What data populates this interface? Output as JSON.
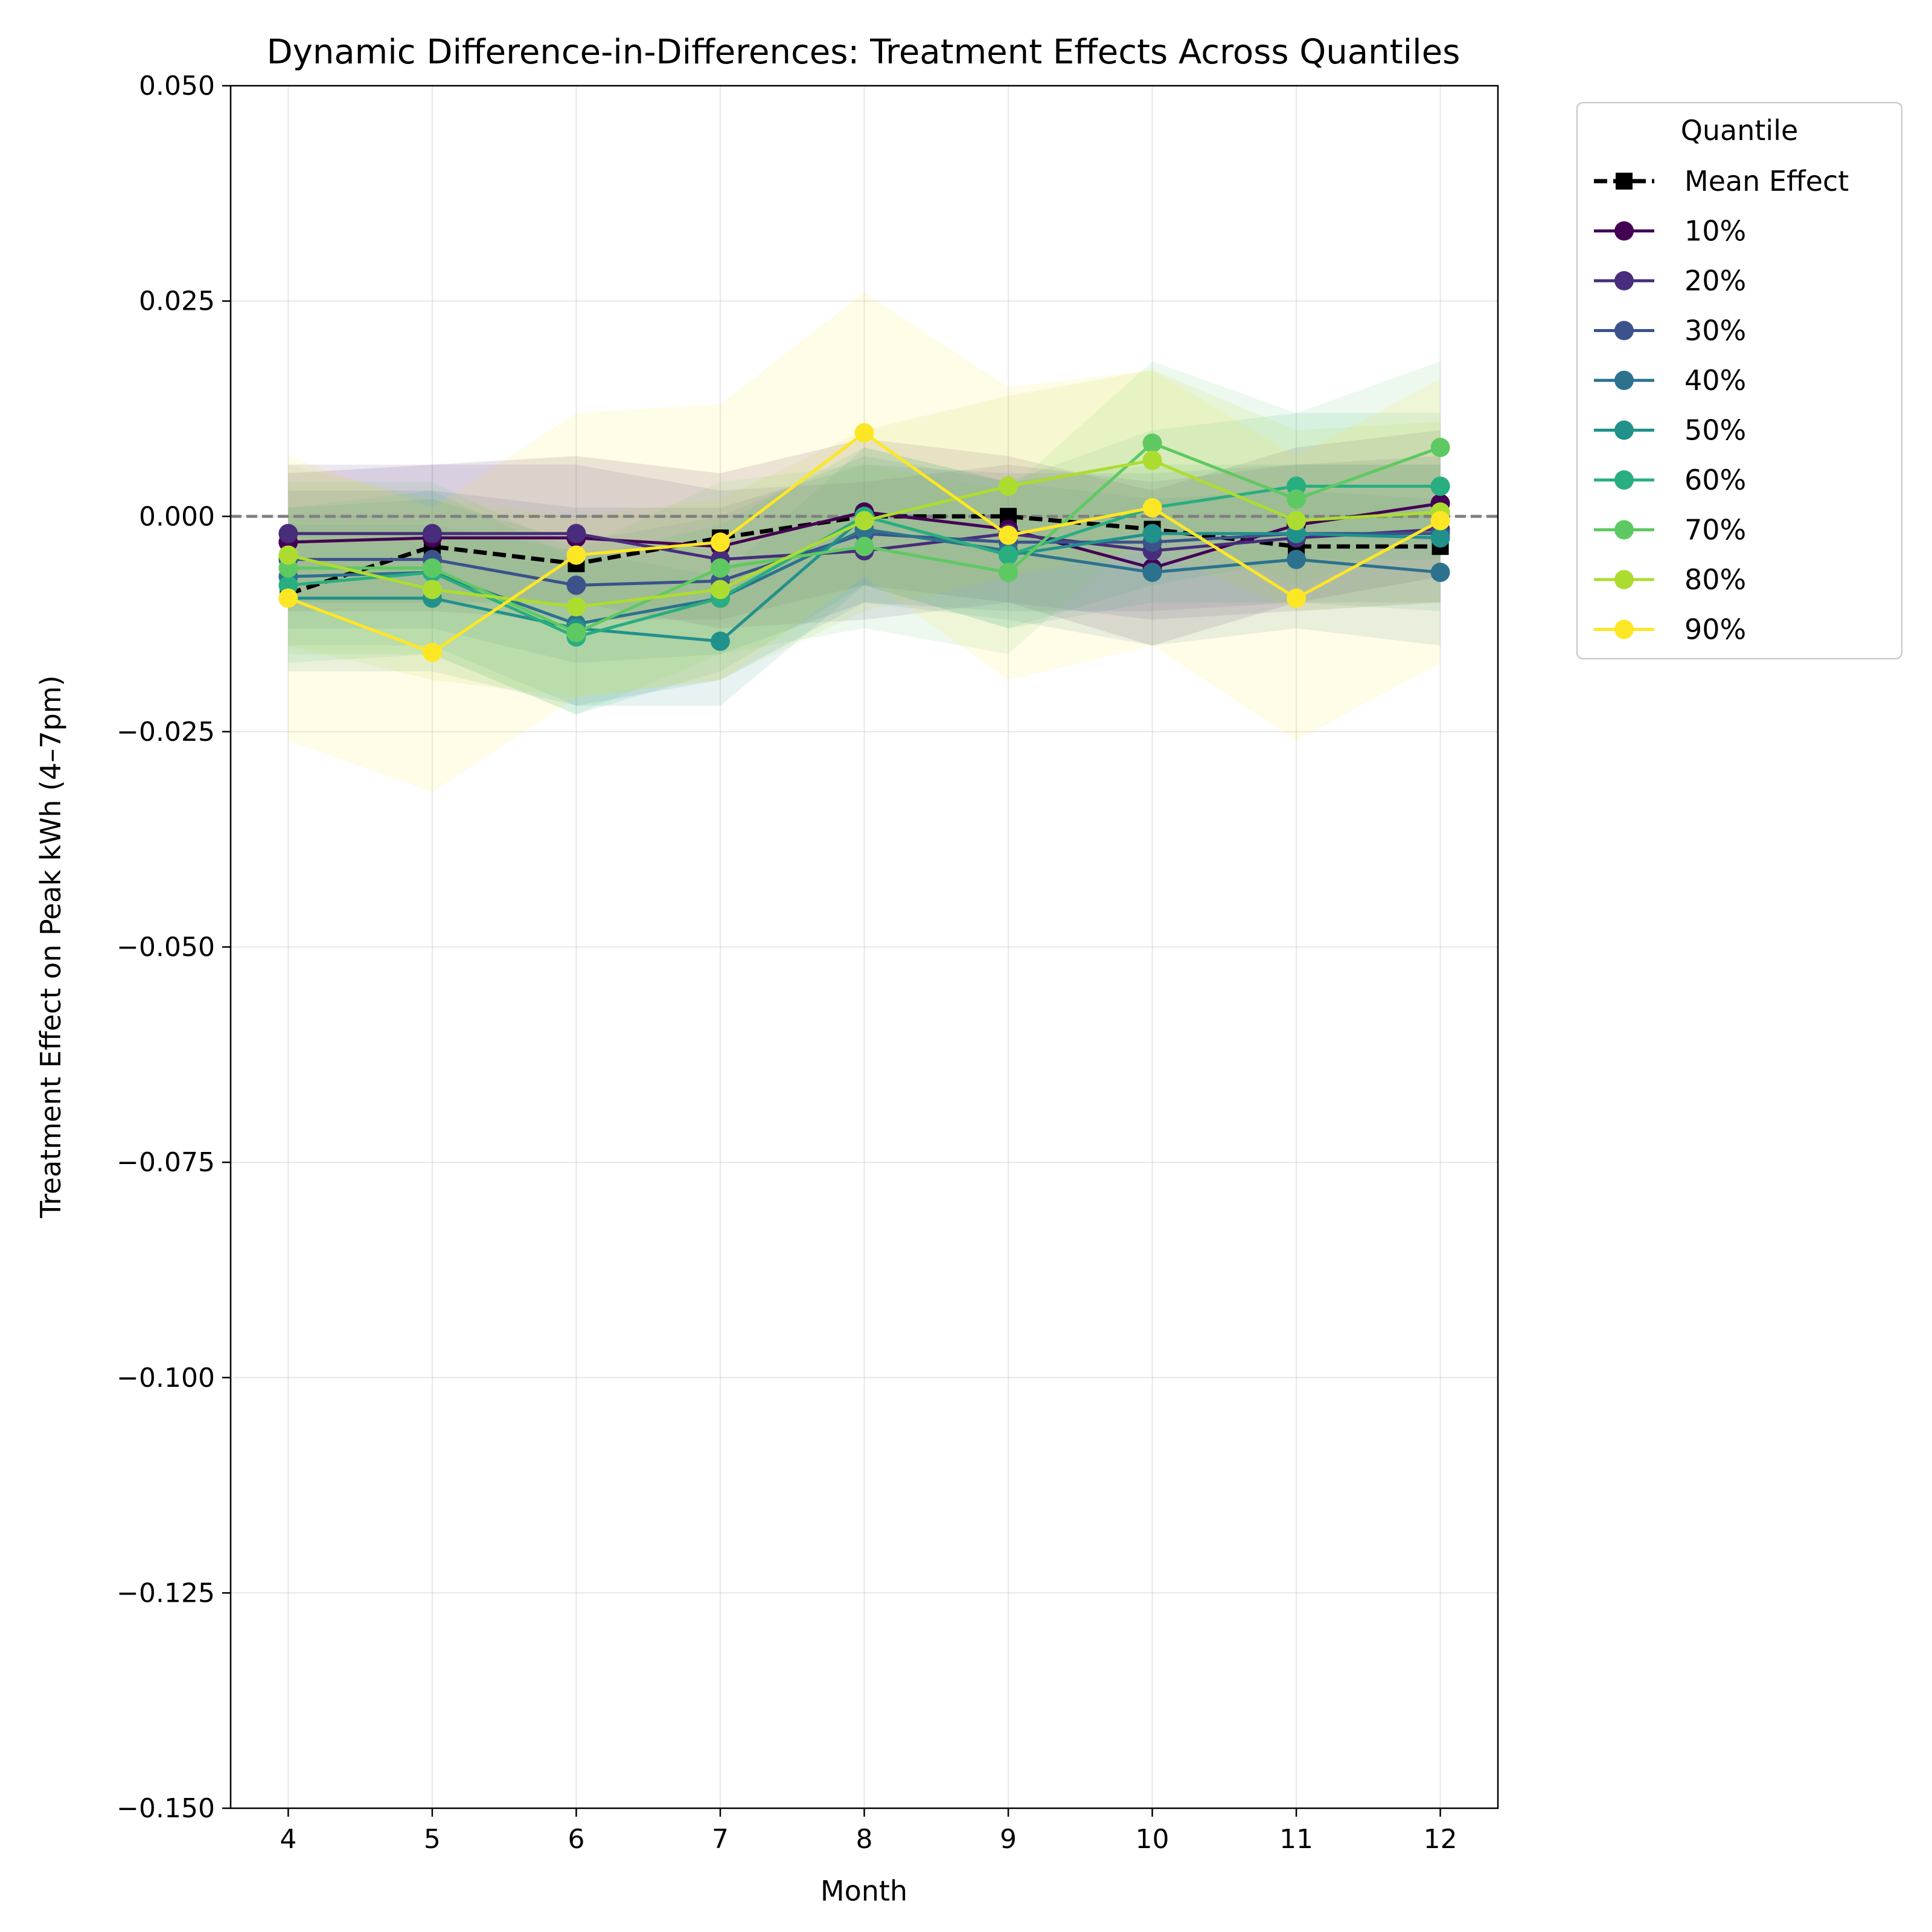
{
  "chart_data": {
    "type": "line",
    "title": "Dynamic Difference-in-Differences: Treatment Effects Across Quantiles",
    "xlabel": "Month",
    "ylabel": "Treatment Effect on Peak kWh (4–7pm)",
    "x": [
      4,
      5,
      6,
      7,
      8,
      9,
      10,
      11,
      12
    ],
    "xticks": [
      "4",
      "5",
      "6",
      "7",
      "8",
      "9",
      "10",
      "11",
      "12"
    ],
    "xlim": [
      3.6,
      12.4
    ],
    "ylim": [
      -0.15,
      0.05
    ],
    "yticks": [
      -0.15,
      -0.125,
      -0.1,
      -0.075,
      -0.05,
      -0.025,
      0.0,
      0.025,
      0.05
    ],
    "ytick_labels": [
      "−0.150",
      "−0.125",
      "−0.100",
      "−0.075",
      "−0.050",
      "−0.025",
      "0.000",
      "0.025",
      "0.050"
    ],
    "grid": true,
    "reference_line": 0.0,
    "legend": {
      "title": "Quantile",
      "position": "outside-right-top"
    },
    "series": [
      {
        "name": "Mean Effect",
        "color": "#000000",
        "dashed": true,
        "marker": "square",
        "values": [
          -0.009,
          -0.0035,
          -0.0055,
          -0.0025,
          0.0,
          0.0,
          -0.0015,
          -0.0035,
          -0.0035
        ]
      },
      {
        "name": "10%",
        "color": "#440154",
        "marker": "circle",
        "values": [
          -0.003,
          -0.0025,
          -0.0025,
          -0.0035,
          0.0005,
          -0.0015,
          -0.006,
          -0.001,
          0.0015
        ],
        "band": [
          [
            -0.011,
            0.005
          ],
          [
            -0.011,
            0.006
          ],
          [
            -0.012,
            0.007
          ],
          [
            -0.012,
            0.005
          ],
          [
            -0.008,
            0.009
          ],
          [
            -0.01,
            0.007
          ],
          [
            -0.015,
            0.003
          ],
          [
            -0.01,
            0.008
          ],
          [
            -0.007,
            0.01
          ]
        ]
      },
      {
        "name": "20%",
        "color": "#472d7b",
        "marker": "circle",
        "values": [
          -0.002,
          -0.002,
          -0.002,
          -0.005,
          -0.004,
          -0.002,
          -0.004,
          -0.0025,
          -0.0015
        ],
        "band": [
          [
            -0.01,
            0.006
          ],
          [
            -0.01,
            0.006
          ],
          [
            -0.01,
            0.006
          ],
          [
            -0.013,
            0.003
          ],
          [
            -0.012,
            0.004
          ],
          [
            -0.01,
            0.006
          ],
          [
            -0.012,
            0.004
          ],
          [
            -0.011,
            0.006
          ],
          [
            -0.01,
            0.007
          ]
        ]
      },
      {
        "name": "30%",
        "color": "#3b528b",
        "marker": "circle",
        "values": [
          -0.005,
          -0.005,
          -0.008,
          -0.0075,
          -0.002,
          -0.003,
          -0.003,
          -0.002,
          -0.002
        ],
        "band": [
          [
            -0.013,
            0.003
          ],
          [
            -0.013,
            0.003
          ],
          [
            -0.017,
            0.001
          ],
          [
            -0.016,
            0.001
          ],
          [
            -0.01,
            0.006
          ],
          [
            -0.011,
            0.005
          ],
          [
            -0.011,
            0.005
          ],
          [
            -0.01,
            0.006
          ],
          [
            -0.01,
            0.006
          ]
        ]
      },
      {
        "name": "40%",
        "color": "#2c728e",
        "marker": "circle",
        "values": [
          -0.007,
          -0.0065,
          -0.0125,
          -0.0095,
          -0.0015,
          -0.004,
          -0.0065,
          -0.005,
          -0.0065
        ],
        "band": [
          [
            -0.015,
            0.001
          ],
          [
            -0.015,
            0.002
          ],
          [
            -0.022,
            -0.003
          ],
          [
            -0.019,
            0.0
          ],
          [
            -0.01,
            0.007
          ],
          [
            -0.012,
            0.004
          ],
          [
            -0.015,
            0.002
          ],
          [
            -0.013,
            0.003
          ],
          [
            -0.015,
            0.002
          ]
        ]
      },
      {
        "name": "50%",
        "color": "#21918c",
        "marker": "circle",
        "values": [
          -0.0095,
          -0.0095,
          -0.013,
          -0.0145,
          0.0,
          -0.0045,
          -0.002,
          -0.002,
          -0.0025
        ],
        "band": [
          [
            -0.018,
            -0.001
          ],
          [
            -0.018,
            -0.001
          ],
          [
            -0.022,
            -0.004
          ],
          [
            -0.022,
            -0.007
          ],
          [
            -0.008,
            0.008
          ],
          [
            -0.013,
            0.004
          ],
          [
            -0.01,
            0.006
          ],
          [
            -0.01,
            0.006
          ],
          [
            -0.011,
            0.006
          ]
        ]
      },
      {
        "name": "60%",
        "color": "#28ae80",
        "marker": "circle",
        "values": [
          -0.008,
          -0.0065,
          -0.014,
          -0.0095,
          0.0,
          -0.0045,
          0.001,
          0.0035,
          0.0035
        ],
        "band": [
          [
            -0.017,
            0.001
          ],
          [
            -0.016,
            0.003
          ],
          [
            -0.023,
            -0.005
          ],
          [
            -0.018,
            -0.001
          ],
          [
            -0.008,
            0.008
          ],
          [
            -0.013,
            0.004
          ],
          [
            -0.008,
            0.01
          ],
          [
            -0.005,
            0.012
          ],
          [
            -0.005,
            0.012
          ]
        ]
      },
      {
        "name": "70%",
        "color": "#5ec962",
        "marker": "circle",
        "values": [
          -0.006,
          -0.006,
          -0.0135,
          -0.006,
          -0.0035,
          -0.0065,
          0.0085,
          0.002,
          0.008
        ],
        "band": [
          [
            -0.016,
            0.004
          ],
          [
            -0.016,
            0.004
          ],
          [
            -0.023,
            -0.004
          ],
          [
            -0.016,
            0.004
          ],
          [
            -0.013,
            0.006
          ],
          [
            -0.016,
            0.003
          ],
          [
            -0.001,
            0.018
          ],
          [
            -0.008,
            0.012
          ],
          [
            -0.002,
            0.018
          ]
        ]
      },
      {
        "name": "80%",
        "color": "#addc30",
        "marker": "circle",
        "values": [
          -0.0045,
          -0.0085,
          -0.0105,
          -0.0085,
          -0.0005,
          0.0035,
          0.0065,
          -0.0005,
          0.0005
        ],
        "band": [
          [
            -0.015,
            0.006
          ],
          [
            -0.019,
            0.002
          ],
          [
            -0.021,
            0.0
          ],
          [
            -0.019,
            0.002
          ],
          [
            -0.011,
            0.01
          ],
          [
            -0.007,
            0.014
          ],
          [
            -0.004,
            0.017
          ],
          [
            -0.011,
            0.01
          ],
          [
            -0.01,
            0.011
          ]
        ]
      },
      {
        "name": "90%",
        "color": "#fde725",
        "marker": "circle",
        "values": [
          -0.0095,
          -0.0158,
          -0.0045,
          -0.003,
          0.0097,
          -0.0022,
          0.001,
          -0.0095,
          -0.0005
        ],
        "band": [
          [
            -0.026,
            0.007
          ],
          [
            -0.032,
            0.001
          ],
          [
            -0.021,
            0.012
          ],
          [
            -0.019,
            0.013
          ],
          [
            -0.007,
            0.026
          ],
          [
            -0.019,
            0.015
          ],
          [
            -0.015,
            0.017
          ],
          [
            -0.026,
            0.007
          ],
          [
            -0.017,
            0.016
          ]
        ]
      }
    ]
  }
}
